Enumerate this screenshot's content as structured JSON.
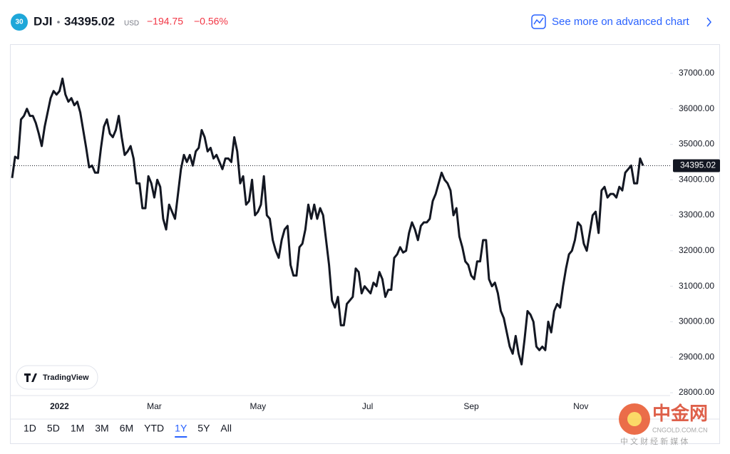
{
  "header": {
    "badge": "30",
    "symbol": "DJI",
    "price": "34395.02",
    "currency": "USD",
    "change": "−194.75",
    "change_pct": "−0.56%",
    "advanced_link": "See more on advanced chart"
  },
  "chart_data": {
    "type": "line",
    "series": [
      {
        "name": "DJI",
        "color": "#131722",
        "values": [
          34050,
          34650,
          34600,
          35700,
          35800,
          36000,
          35800,
          35800,
          35600,
          35300,
          34950,
          35500,
          35900,
          36300,
          36500,
          36400,
          36500,
          36850,
          36400,
          36200,
          36300,
          36100,
          36200,
          35900,
          35400,
          34900,
          34350,
          34400,
          34200,
          34200,
          34900,
          35500,
          35700,
          35300,
          35200,
          35400,
          35800,
          35200,
          34700,
          34800,
          34950,
          34600,
          33900,
          33900,
          33200,
          33200,
          34100,
          33900,
          33500,
          34000,
          33800,
          32900,
          32600,
          33300,
          33100,
          32900,
          33600,
          34300,
          34700,
          34500,
          34700,
          34400,
          34800,
          34900,
          35400,
          35200,
          34800,
          34900,
          34600,
          34700,
          34500,
          34300,
          34600,
          34600,
          34500,
          35200,
          34800,
          33900,
          34100,
          33300,
          33400,
          34000,
          33000,
          33100,
          33300,
          34100,
          33000,
          32900,
          32300,
          32000,
          31800,
          32300,
          32600,
          32700,
          31600,
          31300,
          31300,
          32100,
          32200,
          32600,
          33300,
          32900,
          33300,
          32900,
          33200,
          33000,
          32300,
          31600,
          30600,
          30400,
          30700,
          29900,
          29900,
          30500,
          30600,
          30700,
          31500,
          31400,
          30800,
          31000,
          30900,
          30800,
          31100,
          31000,
          31400,
          31200,
          30700,
          30900,
          30900,
          31800,
          31900,
          32100,
          31950,
          32000,
          32500,
          32800,
          32600,
          32300,
          32700,
          32800,
          32800,
          32900,
          33400,
          33600,
          33900,
          34200,
          34000,
          33900,
          33700,
          33000,
          33200,
          32400,
          32100,
          31700,
          31600,
          31300,
          31200,
          31700,
          31700,
          32300,
          32300,
          31200,
          31000,
          31100,
          30800,
          30300,
          30100,
          29700,
          29300,
          29100,
          29600,
          29100,
          28800,
          29500,
          30300,
          30200,
          30000,
          29300,
          29200,
          29300,
          29200,
          30000,
          29700,
          30300,
          30500,
          30400,
          31000,
          31500,
          31900,
          32000,
          32300,
          32800,
          32700,
          32200,
          32000,
          32500,
          33000,
          33100,
          32500,
          33700,
          33800,
          33500,
          33600,
          33600,
          33500,
          33800,
          33700,
          34200,
          34300,
          34400,
          33900,
          33900,
          34600,
          34400
        ]
      }
    ],
    "xlim": [
      0,
      213
    ],
    "xticks": [
      {
        "value": 16,
        "label": "2022"
      },
      {
        "value": 48,
        "label": "Mar"
      },
      {
        "value": 83,
        "label": "May"
      },
      {
        "value": 120,
        "label": "Jul"
      },
      {
        "value": 155,
        "label": "Sep"
      },
      {
        "value": 192,
        "label": "Nov"
      }
    ],
    "ylim": [
      27920,
      37820
    ],
    "yticks": [
      {
        "value": 28000,
        "label": "28000.00"
      },
      {
        "value": 29000,
        "label": "29000.00"
      },
      {
        "value": 30000,
        "label": "30000.00"
      },
      {
        "value": 31000,
        "label": "31000.00"
      },
      {
        "value": 32000,
        "label": "32000.00"
      },
      {
        "value": 33000,
        "label": "33000.00"
      },
      {
        "value": 34000,
        "label": "34000.00"
      },
      {
        "value": 35000,
        "label": "35000.00"
      },
      {
        "value": 36000,
        "label": "36000.00"
      },
      {
        "value": 37000,
        "label": "37000.00"
      }
    ],
    "last_price": {
      "value": 34395.02,
      "label": "34395.02"
    },
    "grid": false
  },
  "ranges": {
    "items": [
      "1D",
      "5D",
      "1M",
      "3M",
      "6M",
      "YTD",
      "1Y",
      "5Y",
      "All"
    ],
    "selected": "1Y"
  },
  "logo": "TradingView",
  "watermark": {
    "name": "中金网",
    "domain": "CNGOLD.COM.CN",
    "slogan": "中 文 财 经 新 媒 体"
  }
}
